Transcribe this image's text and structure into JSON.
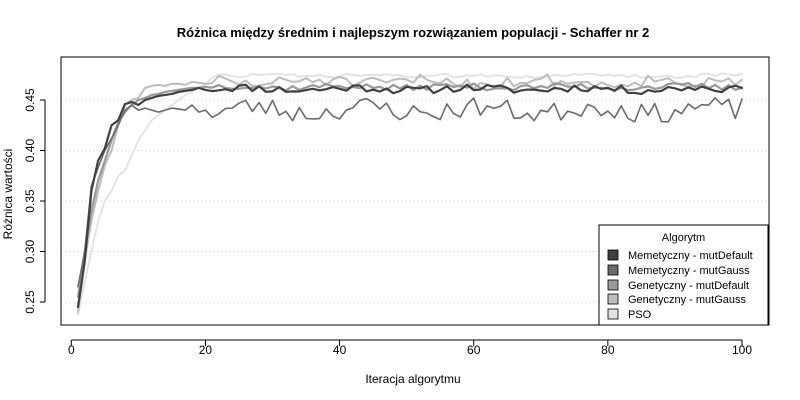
{
  "chart_data": {
    "type": "line",
    "title": "Różnica między średnim i najlepszym rozwiązaniem populacji - Schaffer nr 2",
    "xlabel": "Iteracja algorytmu",
    "ylabel": "Różnica wartości",
    "xlim": [
      1,
      100
    ],
    "ylim": [
      0.233,
      0.487
    ],
    "xticks": [
      0,
      20,
      40,
      60,
      80,
      100
    ],
    "yticks": [
      0.25,
      0.3,
      0.35,
      0.4,
      0.45
    ],
    "ytick_labels": [
      "0.25",
      "0.30",
      "0.35",
      "0.40",
      "0.45"
    ],
    "grid": "horizontal-dotted",
    "legend": {
      "title": "Algorytm",
      "placement": "bottom-right"
    },
    "series": [
      {
        "name": "Memetyczny - mutDefault",
        "color": "#404040",
        "width": 2.2,
        "start": [
          0.245,
          0.29,
          0.36,
          0.39,
          0.402,
          0.425,
          0.43,
          0.446,
          0.448,
          0.445,
          0.45,
          0.452,
          0.454,
          0.455,
          0.456,
          0.458,
          0.459,
          0.46,
          0.462,
          0.46
        ],
        "base": 0.461,
        "amp": 0.004,
        "seed": 11,
        "end": 0.462
      },
      {
        "name": "Memetyczny - mutGauss",
        "color": "#6b6b6b",
        "width": 1.6,
        "start": [
          0.265,
          0.3,
          0.365,
          0.383,
          0.4,
          0.412,
          0.425,
          0.44,
          0.445,
          0.44,
          0.442,
          0.44,
          0.438,
          0.44,
          0.442,
          0.441,
          0.44,
          0.445,
          0.438,
          0.44
        ],
        "base": 0.44,
        "amp": 0.01,
        "seed": 23,
        "end": 0.451
      },
      {
        "name": "Genetyczny - mutDefault",
        "color": "#999999",
        "width": 2.2,
        "start": [
          0.255,
          0.3,
          0.34,
          0.37,
          0.39,
          0.41,
          0.428,
          0.438,
          0.445,
          0.45,
          0.452,
          0.455,
          0.456,
          0.458,
          0.459,
          0.46,
          0.461,
          0.462,
          0.462,
          0.463
        ],
        "base": 0.463,
        "amp": 0.003,
        "seed": 37,
        "end": 0.462
      },
      {
        "name": "Genetyczny - mutGauss",
        "color": "#bdbdbd",
        "width": 2.0,
        "start": [
          0.24,
          0.29,
          0.33,
          0.36,
          0.385,
          0.4,
          0.425,
          0.445,
          0.45,
          0.452,
          0.462,
          0.464,
          0.465,
          0.464,
          0.466,
          0.466,
          0.465,
          0.468,
          0.467,
          0.466
        ],
        "base": 0.468,
        "amp": 0.006,
        "seed": 51,
        "end": 0.47
      },
      {
        "name": "PSO",
        "color": "#e3e3e3",
        "width": 2.0,
        "start": [
          0.238,
          0.27,
          0.3,
          0.33,
          0.35,
          0.36,
          0.375,
          0.38,
          0.395,
          0.41,
          0.42,
          0.43,
          0.435,
          0.44,
          0.445,
          0.45,
          0.455,
          0.458,
          0.462,
          0.465
        ],
        "base": 0.474,
        "amp": 0.002,
        "seed": 73,
        "end": 0.476
      }
    ]
  }
}
